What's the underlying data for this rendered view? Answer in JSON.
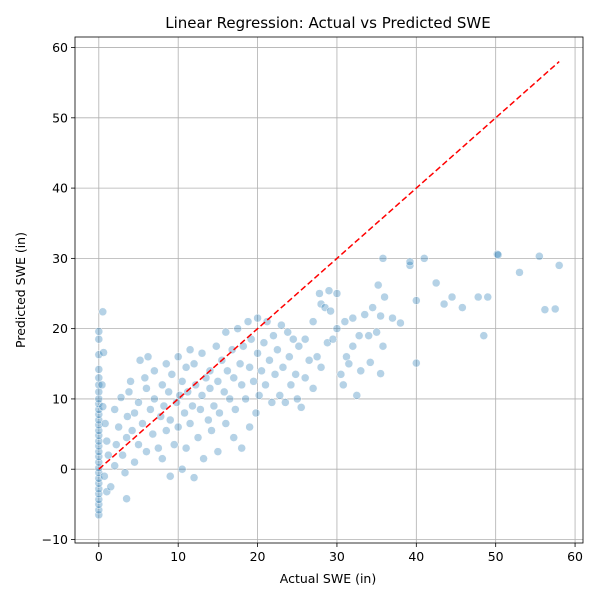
{
  "chart_data": {
    "type": "scatter",
    "title": "Linear Regression: Actual vs Predicted SWE",
    "xlabel": "Actual SWE (in)",
    "ylabel": "Predicted SWE (in)",
    "xlim": [
      -3,
      61
    ],
    "ylim": [
      -10.5,
      61.5
    ],
    "xticks": [
      0,
      10,
      20,
      30,
      40,
      50,
      60
    ],
    "yticks": [
      -10,
      0,
      10,
      20,
      30,
      40,
      50,
      60
    ],
    "grid": true,
    "point_color": "#1f77b4",
    "reference_line": {
      "color": "#ff0000",
      "style": "dashed",
      "x": [
        0,
        58
      ],
      "y": [
        0,
        58
      ]
    },
    "series": [
      {
        "points": [
          [
            0,
            -6.5
          ],
          [
            0,
            -5.8
          ],
          [
            0,
            -5.0
          ],
          [
            0,
            -4.3
          ],
          [
            0,
            -3.5
          ],
          [
            0,
            -2.8
          ],
          [
            0,
            -2.0
          ],
          [
            0,
            -1.3
          ],
          [
            0,
            -0.5
          ],
          [
            0,
            0.2
          ],
          [
            0,
            1.0
          ],
          [
            0,
            1.8
          ],
          [
            0,
            2.5
          ],
          [
            0,
            3.3
          ],
          [
            0,
            4.0
          ],
          [
            0,
            4.8
          ],
          [
            0,
            5.5
          ],
          [
            0,
            6.3
          ],
          [
            0,
            7.0
          ],
          [
            0,
            7.8
          ],
          [
            0,
            8.5
          ],
          [
            0,
            9.3
          ],
          [
            0,
            10.0
          ],
          [
            0,
            11.0
          ],
          [
            0,
            12.0
          ],
          [
            0,
            13.0
          ],
          [
            0,
            14.2
          ],
          [
            0,
            16.3
          ],
          [
            0,
            18.5
          ],
          [
            0,
            19.6
          ],
          [
            0.5,
            22.4
          ],
          [
            0.6,
            16.6
          ],
          [
            0.4,
            12.0
          ],
          [
            0.5,
            8.9
          ],
          [
            0.8,
            6.5
          ],
          [
            1.0,
            4.0
          ],
          [
            1.2,
            2.0
          ],
          [
            0.7,
            -1.0
          ],
          [
            1.0,
            -3.2
          ],
          [
            1.5,
            -2.5
          ],
          [
            2.0,
            0.5
          ],
          [
            2.2,
            3.5
          ],
          [
            2.5,
            6.0
          ],
          [
            2.0,
            8.5
          ],
          [
            2.8,
            10.2
          ],
          [
            3.0,
            2.0
          ],
          [
            3.3,
            -0.5
          ],
          [
            3.5,
            4.5
          ],
          [
            3.6,
            7.5
          ],
          [
            3.5,
            -4.2
          ],
          [
            3.8,
            11.0
          ],
          [
            4.0,
            12.5
          ],
          [
            4.2,
            5.5
          ],
          [
            4.5,
            8.0
          ],
          [
            4.5,
            1.0
          ],
          [
            5.0,
            3.5
          ],
          [
            5.0,
            9.5
          ],
          [
            5.2,
            15.5
          ],
          [
            5.5,
            6.5
          ],
          [
            5.8,
            13.0
          ],
          [
            6.0,
            2.5
          ],
          [
            6.0,
            11.5
          ],
          [
            6.2,
            16.0
          ],
          [
            6.5,
            8.5
          ],
          [
            6.8,
            5.0
          ],
          [
            7.0,
            10.0
          ],
          [
            7.0,
            14.0
          ],
          [
            7.5,
            3.0
          ],
          [
            7.8,
            7.5
          ],
          [
            8.0,
            12.0
          ],
          [
            8.0,
            1.5
          ],
          [
            8.2,
            9.0
          ],
          [
            8.5,
            15.0
          ],
          [
            8.5,
            5.5
          ],
          [
            8.8,
            11.0
          ],
          [
            9.0,
            -1.0
          ],
          [
            9.0,
            7.0
          ],
          [
            9.2,
            13.5
          ],
          [
            9.5,
            3.5
          ],
          [
            9.8,
            9.5
          ],
          [
            10.0,
            16.0
          ],
          [
            10.0,
            6.0
          ],
          [
            10.2,
            10.5
          ],
          [
            10.5,
            0.0
          ],
          [
            10.5,
            12.5
          ],
          [
            10.8,
            8.0
          ],
          [
            11.0,
            14.5
          ],
          [
            11.0,
            3.0
          ],
          [
            11.2,
            11.0
          ],
          [
            11.5,
            17.0
          ],
          [
            11.5,
            6.5
          ],
          [
            11.8,
            9.0
          ],
          [
            12.0,
            15.0
          ],
          [
            12.0,
            -1.2
          ],
          [
            12.2,
            12.0
          ],
          [
            12.5,
            4.5
          ],
          [
            12.8,
            8.5
          ],
          [
            13.0,
            16.5
          ],
          [
            13.0,
            10.5
          ],
          [
            13.2,
            1.5
          ],
          [
            13.5,
            13.0
          ],
          [
            13.8,
            7.0
          ],
          [
            14.0,
            11.5
          ],
          [
            14.0,
            14.0
          ],
          [
            14.2,
            5.5
          ],
          [
            14.5,
            9.0
          ],
          [
            14.8,
            17.5
          ],
          [
            15.0,
            12.5
          ],
          [
            15.0,
            2.5
          ],
          [
            15.2,
            8.0
          ],
          [
            15.5,
            15.5
          ],
          [
            15.8,
            11.0
          ],
          [
            16.0,
            19.5
          ],
          [
            16.0,
            6.5
          ],
          [
            16.2,
            14.0
          ],
          [
            16.5,
            10.0
          ],
          [
            16.8,
            17.0
          ],
          [
            17.0,
            13.0
          ],
          [
            17.0,
            4.5
          ],
          [
            17.2,
            8.5
          ],
          [
            17.5,
            20.0
          ],
          [
            17.8,
            15.0
          ],
          [
            18.0,
            12.0
          ],
          [
            18.0,
            3.0
          ],
          [
            18.2,
            17.5
          ],
          [
            18.5,
            10.0
          ],
          [
            18.8,
            21.0
          ],
          [
            19.0,
            14.5
          ],
          [
            19.0,
            6.0
          ],
          [
            19.2,
            18.5
          ],
          [
            19.5,
            12.5
          ],
          [
            19.8,
            8.0
          ],
          [
            20.0,
            16.5
          ],
          [
            20.0,
            21.5
          ],
          [
            20.2,
            10.5
          ],
          [
            20.5,
            14.0
          ],
          [
            20.8,
            18.0
          ],
          [
            21.0,
            12.0
          ],
          [
            21.2,
            21.0
          ],
          [
            21.5,
            15.5
          ],
          [
            21.8,
            9.5
          ],
          [
            22.0,
            19.0
          ],
          [
            22.2,
            13.5
          ],
          [
            22.5,
            17.0
          ],
          [
            22.8,
            10.5
          ],
          [
            23.0,
            20.5
          ],
          [
            23.2,
            14.5
          ],
          [
            23.5,
            9.5
          ],
          [
            23.8,
            19.5
          ],
          [
            24.0,
            16.0
          ],
          [
            24.2,
            12.0
          ],
          [
            24.5,
            18.5
          ],
          [
            24.8,
            13.5
          ],
          [
            25.0,
            10.0
          ],
          [
            25.2,
            17.5
          ],
          [
            25.5,
            8.8
          ],
          [
            26.0,
            13.0
          ],
          [
            26.0,
            18.5
          ],
          [
            26.5,
            15.5
          ],
          [
            27.0,
            11.5
          ],
          [
            27.0,
            21.0
          ],
          [
            27.5,
            16.0
          ],
          [
            27.8,
            25.0
          ],
          [
            28.0,
            23.5
          ],
          [
            28.0,
            14.5
          ],
          [
            28.5,
            23.0
          ],
          [
            28.8,
            18.0
          ],
          [
            29.0,
            25.4
          ],
          [
            29.2,
            22.5
          ],
          [
            29.5,
            18.5
          ],
          [
            30.0,
            25.0
          ],
          [
            30.0,
            20.0
          ],
          [
            30.5,
            13.5
          ],
          [
            30.8,
            12.0
          ],
          [
            31.0,
            21.0
          ],
          [
            31.2,
            16.0
          ],
          [
            31.5,
            15.0
          ],
          [
            32.0,
            21.5
          ],
          [
            32.0,
            17.5
          ],
          [
            32.5,
            10.5
          ],
          [
            32.8,
            19.0
          ],
          [
            33.0,
            14.0
          ],
          [
            33.5,
            22.0
          ],
          [
            34.0,
            19.0
          ],
          [
            34.2,
            15.2
          ],
          [
            34.5,
            23.0
          ],
          [
            35.0,
            19.5
          ],
          [
            35.2,
            26.2
          ],
          [
            35.5,
            13.6
          ],
          [
            35.5,
            21.8
          ],
          [
            35.8,
            17.5
          ],
          [
            35.8,
            30.0
          ],
          [
            36.0,
            24.5
          ],
          [
            37.0,
            21.5
          ],
          [
            38.0,
            20.8
          ],
          [
            39.2,
            29.0
          ],
          [
            39.2,
            29.5
          ],
          [
            40.0,
            15.1
          ],
          [
            40.0,
            24.0
          ],
          [
            41.0,
            30.0
          ],
          [
            42.5,
            26.5
          ],
          [
            43.5,
            23.5
          ],
          [
            44.5,
            24.5
          ],
          [
            45.8,
            23.0
          ],
          [
            47.8,
            24.5
          ],
          [
            48.5,
            19.0
          ],
          [
            49.0,
            24.5
          ],
          [
            50.2,
            30.6
          ],
          [
            50.3,
            30.5
          ],
          [
            53.0,
            28.0
          ],
          [
            55.5,
            30.3
          ],
          [
            56.2,
            22.7
          ],
          [
            57.5,
            22.8
          ],
          [
            58.0,
            29.0
          ]
        ]
      }
    ]
  }
}
